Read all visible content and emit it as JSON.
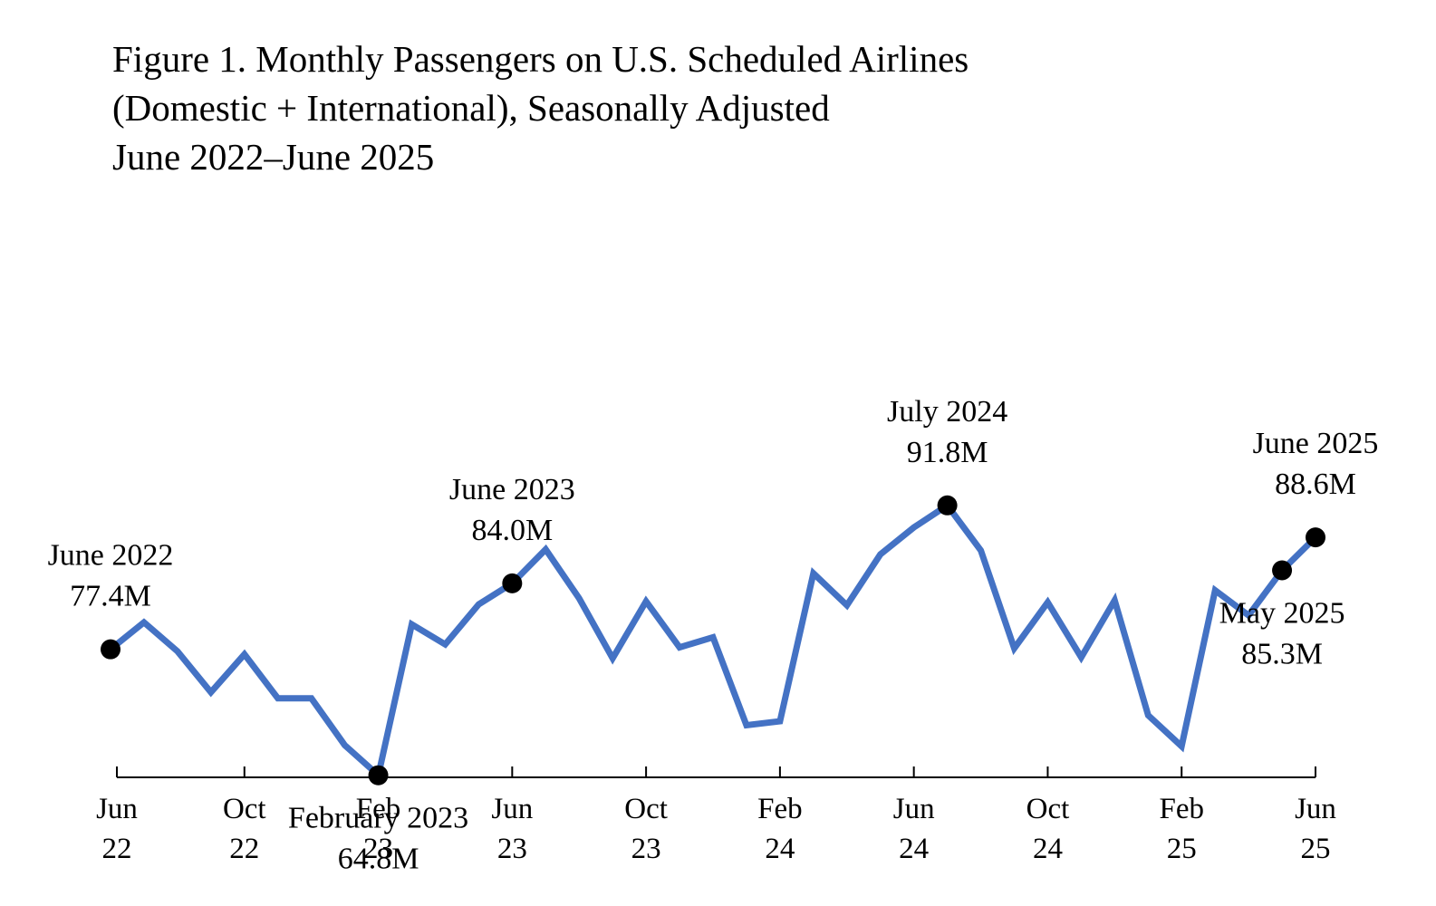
{
  "title_lines": [
    "Figure 1. Monthly Passengers on U.S. Scheduled Airlines",
    "(Domestic + International), Seasonally Adjusted",
    "June 2022–June 2025"
  ],
  "chart_data": {
    "type": "line",
    "title": "Figure 1. Monthly Passengers on U.S. Scheduled Airlines (Domestic + International), Seasonally Adjusted June 2022–June 2025",
    "xlabel": "",
    "ylabel": "",
    "grid": false,
    "ylim": [
      50,
      110
    ],
    "line_color": "#4472C4",
    "marker_color": "#000000",
    "x": [
      "Jun 2022",
      "Jul 2022",
      "Aug 2022",
      "Sep 2022",
      "Oct 2022",
      "Nov 2022",
      "Dec 2022",
      "Jan 2023",
      "Feb 2023",
      "Mar 2023",
      "Apr 2023",
      "May 2023",
      "Jun 2023",
      "Jul 2023",
      "Aug 2023",
      "Sep 2023",
      "Oct 2023",
      "Nov 2023",
      "Dec 2023",
      "Jan 2024",
      "Feb 2024",
      "Mar 2024",
      "Apr 2024",
      "May 2024",
      "Jun 2024",
      "Jul 2024",
      "Aug 2024",
      "Sep 2024",
      "Oct 2024",
      "Nov 2024",
      "Dec 2024",
      "Jan 2025",
      "Feb 2025",
      "Mar 2025",
      "Apr 2025",
      "May 2025",
      "Jun 2025"
    ],
    "series": [
      {
        "name": "Monthly passengers (millions)",
        "values": [
          77.4,
          80.1,
          77.2,
          73.1,
          76.9,
          72.5,
          72.5,
          67.8,
          64.8,
          79.9,
          77.9,
          81.9,
          84.0,
          87.4,
          82.5,
          76.5,
          82.2,
          77.6,
          78.6,
          69.8,
          70.2,
          85.0,
          81.8,
          86.9,
          89.6,
          91.8,
          87.3,
          77.5,
          82.1,
          76.6,
          82.3,
          70.8,
          67.7,
          83.3,
          80.8,
          85.3,
          88.6
        ]
      }
    ],
    "x_ticks": [
      {
        "line1": "Jun",
        "line2": "22"
      },
      {
        "line1": "Oct",
        "line2": "22"
      },
      {
        "line1": "Feb",
        "line2": "23"
      },
      {
        "line1": "Jun",
        "line2": "23"
      },
      {
        "line1": "Oct",
        "line2": "23"
      },
      {
        "line1": "Feb",
        "line2": "24"
      },
      {
        "line1": "Jun",
        "line2": "24"
      },
      {
        "line1": "Oct",
        "line2": "24"
      },
      {
        "line1": "Feb",
        "line2": "25"
      },
      {
        "line1": "Jun",
        "line2": "25"
      }
    ],
    "annotations": [
      {
        "index": 0,
        "label": "June 2022",
        "value": "77.4M",
        "position": "above"
      },
      {
        "index": 8,
        "label": "February 2023",
        "value": "64.8M",
        "position": "below"
      },
      {
        "index": 12,
        "label": "June 2023",
        "value": "84.0M",
        "position": "above"
      },
      {
        "index": 25,
        "label": "July 2024",
        "value": "91.8M",
        "position": "above"
      },
      {
        "index": 35,
        "label": "May 2025",
        "value": "85.3M",
        "position": "below"
      },
      {
        "index": 36,
        "label": "June 2025",
        "value": "88.6M",
        "position": "above"
      }
    ]
  }
}
